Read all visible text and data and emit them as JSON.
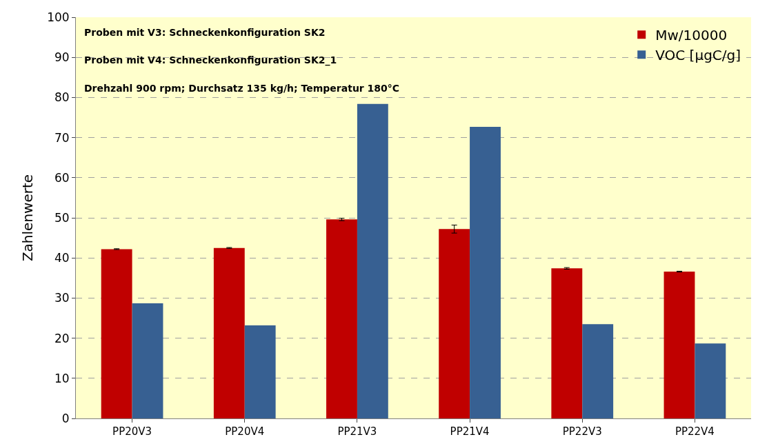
{
  "chart_data": {
    "type": "bar",
    "ylabel": "Zahlenwerte",
    "categories": [
      "PP20V3",
      "PP20V4",
      "PP21V3",
      "PP21V4",
      "PP22V3",
      "PP22V4"
    ],
    "series": [
      {
        "name": "Mw/10000",
        "color": "#c00000",
        "values": [
          42.2,
          42.5,
          49.6,
          47.2,
          37.4,
          36.6
        ],
        "errors": [
          0.1,
          0.1,
          0.3,
          1.0,
          0.2,
          0.1
        ]
      },
      {
        "name": "VOC [µgC/g]",
        "color": "#376092",
        "values": [
          28.7,
          23.2,
          78.4,
          72.7,
          23.5,
          18.7
        ]
      }
    ],
    "ylim": [
      0,
      100
    ],
    "yticks": [
      0,
      10,
      20,
      30,
      40,
      50,
      60,
      70,
      80,
      90,
      100
    ],
    "grid": "y",
    "legend": "top right",
    "annotations": [
      "Proben mit V3: Schneckenkonfiguration SK2",
      "Proben mit V4: Schneckenkonfiguration SK2_1",
      "Drehzahl 900 rpm; Durchsatz 135 kg/h; Temperatur 180°C"
    ]
  }
}
